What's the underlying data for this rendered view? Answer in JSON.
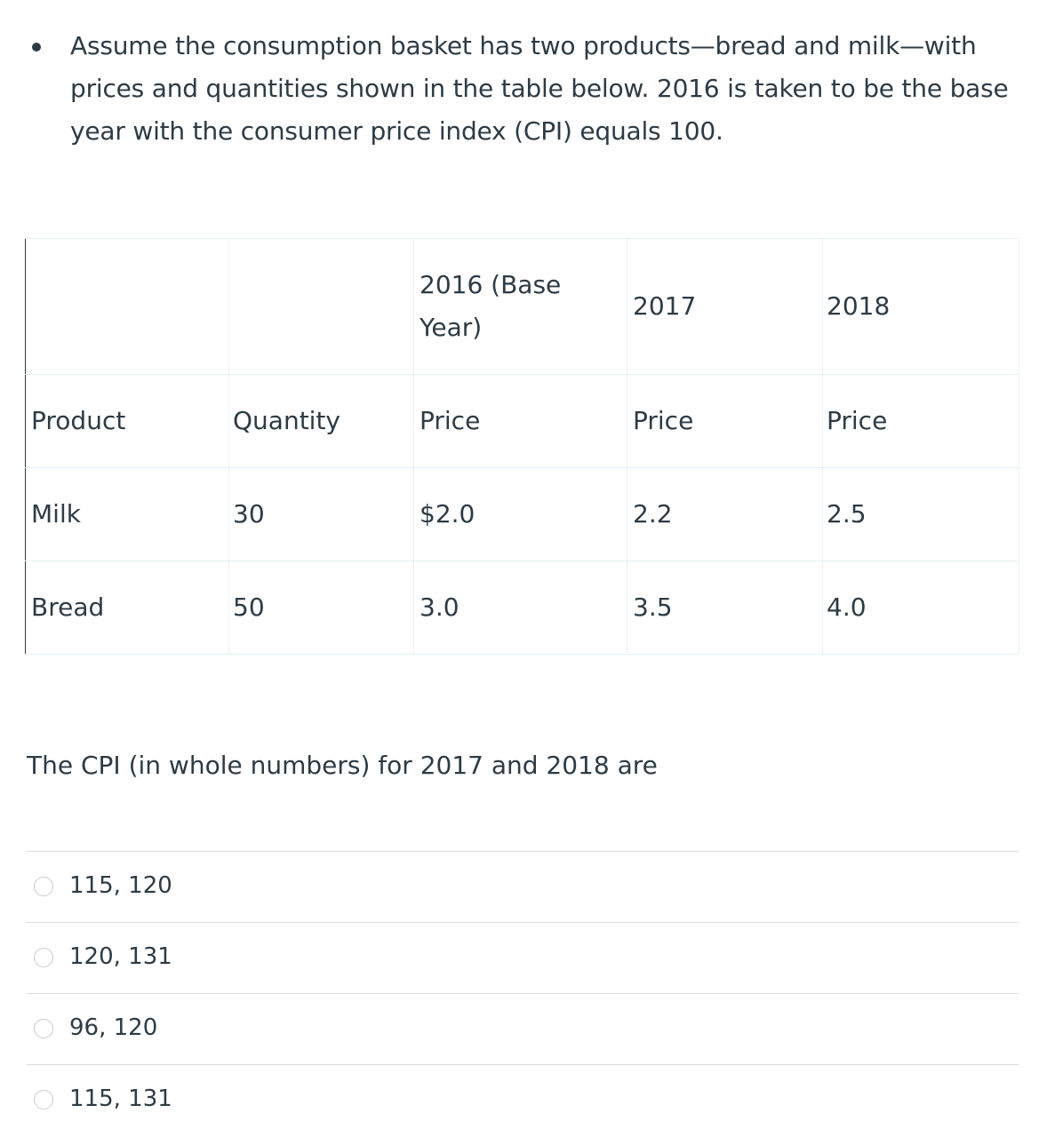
{
  "prompt": {
    "text": "Assume the consumption basket has two products—bread and milk—with prices and quantities shown in the table below. 2016 is taken to be the base year with the consumer price index (CPI) equals 100."
  },
  "table": {
    "rows": [
      [
        "",
        "",
        "2016 (Base Year)",
        "2017",
        "2018"
      ],
      [
        "Product",
        "Quantity",
        "Price",
        "Price",
        "Price"
      ],
      [
        "Milk",
        "30",
        "$2.0",
        "2.2",
        "2.5"
      ],
      [
        "Bread",
        "50",
        "3.0",
        "3.5",
        "4.0"
      ]
    ]
  },
  "question": {
    "text": "The CPI (in whole numbers) for 2017 and 2018 are"
  },
  "answers": [
    {
      "label": "115, 120"
    },
    {
      "label": "120, 131"
    },
    {
      "label": "96, 120"
    },
    {
      "label": "115, 131"
    }
  ]
}
